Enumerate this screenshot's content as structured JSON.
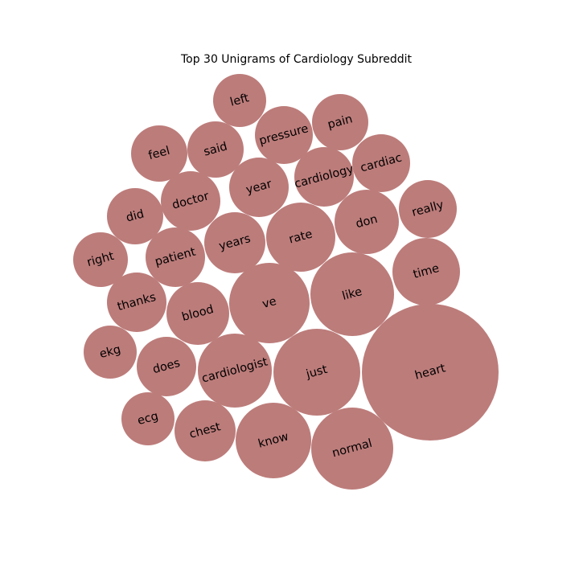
{
  "chart_data": {
    "type": "packed-bubble",
    "title": "Top 30 Unigrams of Cardiology Subreddit",
    "bubble_color": "#bc7c7a",
    "label_rotation_deg": -15,
    "words": [
      "heart",
      "normal",
      "know",
      "chest",
      "ecg",
      "just",
      "cardiologist",
      "does",
      "ekg",
      "like",
      "ve",
      "blood",
      "thanks",
      "time",
      "don",
      "rate",
      "years",
      "patient",
      "right",
      "really",
      "cardiology",
      "year",
      "doctor",
      "did",
      "cardiac",
      "pressure",
      "said",
      "feel",
      "pain",
      "left"
    ]
  }
}
